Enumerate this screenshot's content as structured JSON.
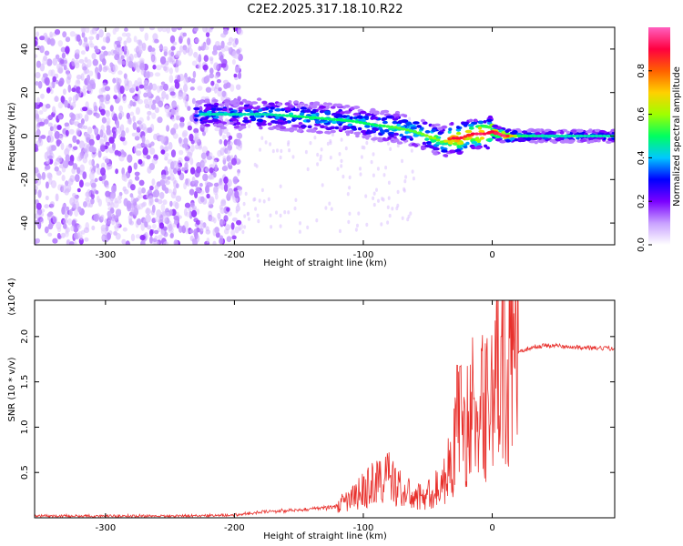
{
  "figure_title": "C2E2.2025.317.18.10.R22",
  "chart_data": [
    {
      "type": "heatmap",
      "xlabel": "Height of straight line (km)",
      "ylabel": "Frequency (Hz)",
      "xlim": [
        -355,
        95
      ],
      "ylim": [
        -50,
        50
      ],
      "xticks": [
        -300,
        -200,
        -100,
        0
      ],
      "xtick_labels": [
        "-300",
        "-200",
        "-100",
        "0"
      ],
      "yticks": [
        -40,
        -20,
        0,
        20,
        40
      ],
      "ytick_labels": [
        "-40",
        "-20",
        "0",
        "20",
        "40"
      ],
      "colorbar": {
        "label": "Normalized spectral amplitude",
        "range": [
          0,
          1
        ],
        "ticks": [
          0.0,
          0.2,
          0.4,
          0.6,
          0.8
        ],
        "tick_labels": [
          "0.0",
          "0.2",
          "0.4",
          "0.6",
          "0.8"
        ],
        "colormap": [
          "#ffffff",
          "#c8a0ff",
          "#7a00ff",
          "#0000ff",
          "#00c8ff",
          "#00ff60",
          "#a0ff00",
          "#ffd000",
          "#ff6000",
          "#ff0040",
          "#ff60c0"
        ]
      },
      "ridge": {
        "x": [
          -225,
          -200,
          -175,
          -150,
          -130,
          -110,
          -90,
          -75,
          -60,
          -45,
          -38,
          -32,
          -25,
          -20,
          -15,
          -10,
          -5,
          0,
          5,
          10,
          20,
          40,
          60,
          80,
          95
        ],
        "freq": [
          10,
          10,
          10,
          9,
          8,
          7,
          5,
          4,
          2,
          -1,
          -3,
          -1,
          -1,
          0,
          1,
          1,
          1,
          2,
          1,
          0,
          0,
          0,
          0,
          0,
          0
        ],
        "amplitude": [
          0.45,
          0.45,
          0.45,
          0.5,
          0.5,
          0.5,
          0.5,
          0.55,
          0.55,
          0.6,
          0.55,
          0.9,
          0.9,
          0.85,
          0.9,
          0.95,
          0.9,
          0.9,
          0.95,
          0.95,
          0.5,
          0.45,
          0.45,
          0.45,
          0.45
        ]
      },
      "grid": false
    },
    {
      "type": "line",
      "xlabel": "Height of straight line (km)",
      "ylabel": "SNR (10 * v/v)",
      "y_multiplier": "(x10^4)",
      "xlim": [
        -355,
        95
      ],
      "ylim": [
        0,
        2.4
      ],
      "xticks": [
        -300,
        -200,
        -100,
        0
      ],
      "xtick_labels": [
        "-300",
        "-200",
        "-100",
        "0"
      ],
      "yticks": [
        0.5,
        1.0,
        1.5,
        2.0
      ],
      "ytick_labels": [
        "0.5",
        "1.0",
        "1.5",
        "2.0"
      ],
      "color": "#e8302c",
      "series": [
        {
          "x": [
            -355,
            -300,
            -250,
            -200,
            -180,
            -160,
            -140,
            -120,
            -110,
            -100,
            -90,
            -80,
            -70,
            -60,
            -50,
            -40,
            -32,
            -28,
            -25,
            -20,
            -15,
            -10,
            -5,
            0,
            5,
            10,
            15,
            20,
            30,
            40,
            50,
            60,
            70,
            80,
            95
          ],
          "y": [
            0.02,
            0.02,
            0.02,
            0.03,
            0.06,
            0.08,
            0.1,
            0.13,
            0.2,
            0.3,
            0.4,
            0.45,
            0.3,
            0.22,
            0.25,
            0.35,
            0.6,
            1.0,
            1.1,
            1.0,
            1.2,
            1.1,
            1.3,
            1.5,
            1.55,
            1.6,
            1.75,
            1.82,
            1.88,
            1.9,
            1.9,
            1.88,
            1.88,
            1.87,
            1.87
          ]
        }
      ],
      "grid": false
    }
  ]
}
